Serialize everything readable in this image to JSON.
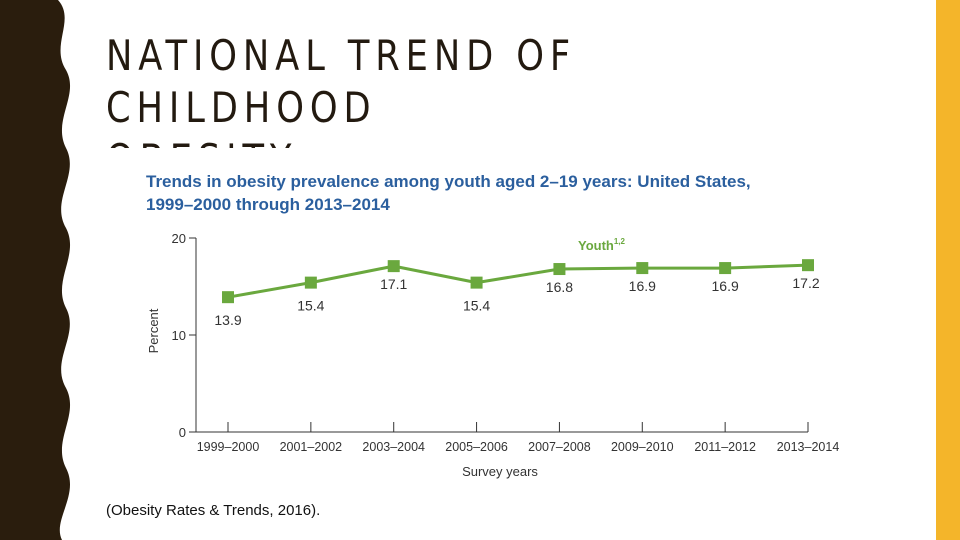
{
  "slide": {
    "title_line1": "NATIONAL TREND OF CHILDHOOD",
    "title_line2": "OBESITY",
    "citation": "(Obesity Rates & Trends, 2016).",
    "colors": {
      "dark_band": "#2a1d0d",
      "accent_band": "#f4b52a",
      "title": "#231a10"
    }
  },
  "chart_data": {
    "type": "line",
    "title_line1": "Trends in obesity prevalence among youth aged 2–19 years: United States,",
    "title_line2": "1999–2000 through 2013–2014",
    "xlabel": "Survey years",
    "ylabel": "Percent",
    "ylim": [
      0,
      20
    ],
    "yticks": [
      0,
      10,
      20
    ],
    "grid": false,
    "categories": [
      "1999–2000",
      "2001–2002",
      "2003–2004",
      "2005–2006",
      "2007–2008",
      "2009–2010",
      "2011–2012",
      "2013–2014"
    ],
    "series": [
      {
        "name": "Youth",
        "name_superscript": "1,2",
        "values": [
          13.9,
          15.4,
          17.1,
          15.4,
          16.8,
          16.9,
          16.9,
          17.2
        ],
        "value_labels": [
          "13.9",
          "15.4",
          "17.1",
          "15.4",
          "16.8",
          "16.9",
          "16.9",
          "17.2"
        ],
        "color": "#6aa83e"
      }
    ],
    "title_color": "#2b5f9e"
  }
}
